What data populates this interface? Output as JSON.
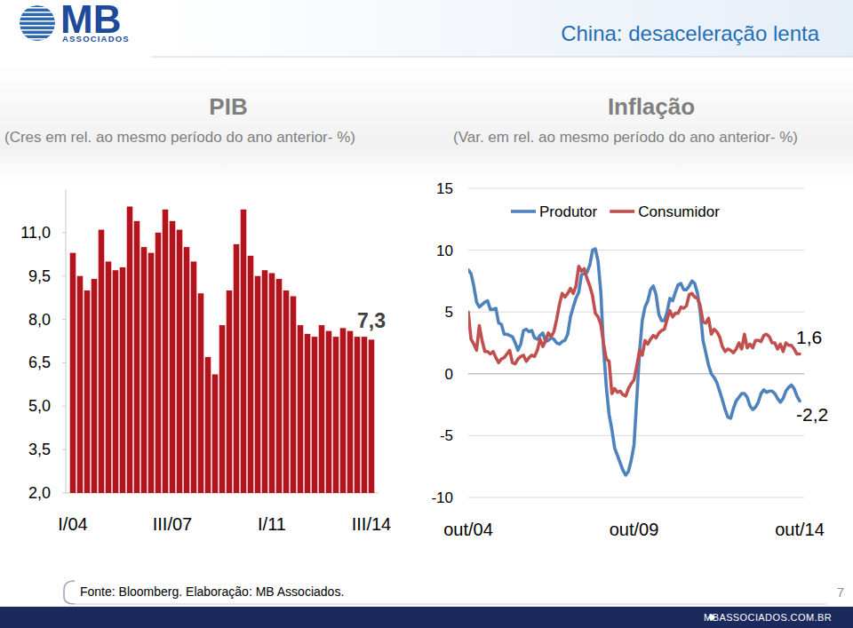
{
  "header": {
    "logo": "MB",
    "logo_sub": "ASSOCIADOS",
    "title": "China: desaceleração lenta"
  },
  "chart_data": [
    {
      "type": "bar",
      "title": "PIB",
      "subtitle": "(Cres em rel. ao mesmo período do ano anterior- %)",
      "categories": [
        "I/04",
        null,
        null,
        null,
        null,
        null,
        null,
        null,
        null,
        null,
        null,
        null,
        null,
        null,
        "III/07",
        null,
        null,
        null,
        null,
        null,
        null,
        null,
        null,
        null,
        null,
        null,
        null,
        null,
        "I/11",
        null,
        null,
        null,
        null,
        null,
        null,
        null,
        null,
        null,
        null,
        null,
        null,
        null,
        "III/14"
      ],
      "values": [
        10.3,
        9.5,
        9.0,
        9.4,
        11.1,
        10.0,
        9.7,
        9.8,
        11.9,
        11.4,
        10.5,
        10.3,
        11.0,
        11.8,
        11.4,
        11.1,
        10.5,
        10.0,
        8.9,
        6.7,
        6.1,
        7.8,
        9.0,
        10.6,
        11.8,
        10.2,
        9.5,
        9.7,
        9.6,
        9.4,
        9.0,
        8.8,
        7.8,
        7.5,
        7.4,
        7.8,
        7.6,
        7.4,
        7.7,
        7.6,
        7.4,
        7.4,
        7.3
      ],
      "value_labels": [
        null,
        null,
        null,
        null,
        null,
        null,
        null,
        null,
        null,
        null,
        null,
        null,
        null,
        null,
        null,
        null,
        null,
        null,
        null,
        null,
        null,
        null,
        null,
        null,
        null,
        null,
        null,
        null,
        null,
        null,
        null,
        null,
        null,
        null,
        null,
        null,
        null,
        null,
        null,
        null,
        null,
        null,
        "7,3"
      ],
      "data_labels": true,
      "color": "#b5121b",
      "ylim": [
        2,
        12.5
      ],
      "yticks": [
        {
          "value": 2,
          "label": "2,0"
        },
        {
          "value": 3.5,
          "label": "3,5"
        },
        {
          "value": 5,
          "label": "5,0"
        },
        {
          "value": 6.5,
          "label": "6,5"
        },
        {
          "value": 8,
          "label": "8,0"
        },
        {
          "value": 9.5,
          "label": "9,5"
        },
        {
          "value": 11,
          "label": "11,0"
        }
      ]
    },
    {
      "type": "line",
      "title": "Inflação",
      "subtitle": "(Var. em rel. ao mesmo período do ano anterior- %)",
      "categories": [
        "out/04",
        null,
        null,
        null,
        null,
        null,
        null,
        null,
        null,
        null,
        null,
        null,
        null,
        null,
        null,
        null,
        null,
        null,
        null,
        null,
        null,
        null,
        null,
        null,
        null,
        null,
        null,
        null,
        null,
        null,
        null,
        null,
        null,
        null,
        null,
        null,
        null,
        null,
        null,
        null,
        null,
        null,
        null,
        null,
        null,
        null,
        null,
        null,
        null,
        null,
        null,
        null,
        null,
        null,
        null,
        null,
        null,
        null,
        null,
        null,
        "out/09",
        null,
        null,
        null,
        null,
        null,
        null,
        null,
        null,
        null,
        null,
        null,
        null,
        null,
        null,
        null,
        null,
        null,
        null,
        null,
        null,
        null,
        null,
        null,
        null,
        null,
        null,
        null,
        null,
        null,
        null,
        null,
        null,
        null,
        null,
        null,
        null,
        null,
        null,
        null,
        null,
        null,
        null,
        null,
        null,
        null,
        null,
        null,
        null,
        null,
        null,
        null,
        null,
        null,
        null,
        null,
        null,
        null,
        null,
        null,
        "out/14"
      ],
      "series": [
        {
          "name": "Produtor",
          "color": "#4f81bd",
          "values": [
            8.4,
            8.1,
            7.1,
            5.8,
            5.4,
            5.6,
            5.8,
            5.9,
            5.2,
            5.2,
            5.3,
            4.1,
            4.0,
            3.2,
            3.2,
            3.1,
            3.0,
            2.5,
            1.9,
            2.4,
            3.5,
            3.6,
            3.4,
            3.5,
            2.9,
            2.8,
            3.1,
            3.3,
            2.6,
            2.7,
            2.9,
            2.8,
            2.5,
            2.4,
            2.6,
            2.7,
            3.2,
            4.6,
            5.4,
            6.1,
            6.6,
            8.0,
            8.1,
            8.2,
            8.8,
            10.0,
            10.1,
            9.1,
            6.6,
            2.0,
            -1.1,
            -3.3,
            -4.5,
            -6.0,
            -6.6,
            -7.2,
            -7.8,
            -8.2,
            -7.9,
            -7.0,
            -5.8,
            -2.1,
            1.7,
            4.3,
            5.4,
            5.9,
            6.8,
            7.1,
            6.4,
            4.8,
            4.3,
            4.3,
            5.0,
            6.1,
            5.9,
            6.6,
            7.2,
            7.3,
            6.8,
            6.8,
            7.1,
            7.5,
            7.3,
            6.5,
            5.0,
            2.7,
            1.7,
            0.7,
            0.0,
            -0.3,
            -0.7,
            -1.4,
            -2.1,
            -2.9,
            -3.5,
            -3.6,
            -2.8,
            -2.2,
            -1.9,
            -1.6,
            -1.6,
            -1.9,
            -2.6,
            -2.9,
            -2.7,
            -2.3,
            -1.6,
            -1.3,
            -1.5,
            -1.4,
            -1.4,
            -1.6,
            -2.0,
            -2.3,
            -2.0,
            -1.4,
            -1.1,
            -0.9,
            -1.2,
            -1.8,
            -2.2
          ],
          "value_labels": [
            null,
            null,
            null,
            null,
            null,
            null,
            null,
            null,
            null,
            null,
            null,
            null,
            null,
            null,
            null,
            null,
            null,
            null,
            null,
            null,
            null,
            null,
            null,
            null,
            null,
            null,
            null,
            null,
            null,
            null,
            null,
            null,
            null,
            null,
            null,
            null,
            null,
            null,
            null,
            null,
            null,
            null,
            null,
            null,
            null,
            null,
            null,
            null,
            null,
            null,
            null,
            null,
            null,
            null,
            null,
            null,
            null,
            null,
            null,
            null,
            null,
            null,
            null,
            null,
            null,
            null,
            null,
            null,
            null,
            null,
            null,
            null,
            null,
            null,
            null,
            null,
            null,
            null,
            null,
            null,
            null,
            null,
            null,
            null,
            null,
            null,
            null,
            null,
            null,
            null,
            null,
            null,
            null,
            null,
            null,
            null,
            null,
            null,
            null,
            null,
            null,
            null,
            null,
            null,
            null,
            null,
            null,
            null,
            null,
            null,
            null,
            null,
            null,
            null,
            null,
            null,
            null,
            null,
            null,
            null,
            "-2,2"
          ]
        },
        {
          "name": "Consumidor",
          "color": "#c0504d",
          "values": [
            5.0,
            2.8,
            2.4,
            1.9,
            3.9,
            2.7,
            1.8,
            1.8,
            1.6,
            1.8,
            1.3,
            0.9,
            1.2,
            1.3,
            1.6,
            1.9,
            0.9,
            0.8,
            1.2,
            1.4,
            1.5,
            1.0,
            1.3,
            1.5,
            1.4,
            1.9,
            2.8,
            2.2,
            2.7,
            3.3,
            3.0,
            3.4,
            4.4,
            5.6,
            6.5,
            6.2,
            6.5,
            6.9,
            6.5,
            7.1,
            8.7,
            8.3,
            8.5,
            7.7,
            7.1,
            6.3,
            4.9,
            4.6,
            4.0,
            2.4,
            1.2,
            1.0,
            -1.6,
            -1.2,
            -1.5,
            -1.4,
            -1.7,
            -1.8,
            -1.2,
            -0.8,
            -0.5,
            0.6,
            1.9,
            1.5,
            2.7,
            2.4,
            2.8,
            3.1,
            2.9,
            3.3,
            3.5,
            3.6,
            4.4,
            5.1,
            4.6,
            4.9,
            4.9,
            5.4,
            5.3,
            5.5,
            6.4,
            6.5,
            6.2,
            6.1,
            5.5,
            4.2,
            4.1,
            4.5,
            3.2,
            3.6,
            3.4,
            3.0,
            2.2,
            1.8,
            2.0,
            1.9,
            1.7,
            2.0,
            2.5,
            2.0,
            3.2,
            2.1,
            2.4,
            2.1,
            2.7,
            2.7,
            2.6,
            3.1,
            3.2,
            3.0,
            2.5,
            2.5,
            2.0,
            2.4,
            1.8,
            2.5,
            2.3,
            2.3,
            2.0,
            1.6,
            1.6
          ],
          "value_labels": [
            null,
            null,
            null,
            null,
            null,
            null,
            null,
            null,
            null,
            null,
            null,
            null,
            null,
            null,
            null,
            null,
            null,
            null,
            null,
            null,
            null,
            null,
            null,
            null,
            null,
            null,
            null,
            null,
            null,
            null,
            null,
            null,
            null,
            null,
            null,
            null,
            null,
            null,
            null,
            null,
            null,
            null,
            null,
            null,
            null,
            null,
            null,
            null,
            null,
            null,
            null,
            null,
            null,
            null,
            null,
            null,
            null,
            null,
            null,
            null,
            null,
            null,
            null,
            null,
            null,
            null,
            null,
            null,
            null,
            null,
            null,
            null,
            null,
            null,
            null,
            null,
            null,
            null,
            null,
            null,
            null,
            null,
            null,
            null,
            null,
            null,
            null,
            null,
            null,
            null,
            null,
            null,
            null,
            null,
            null,
            null,
            null,
            null,
            null,
            null,
            null,
            null,
            null,
            null,
            null,
            null,
            null,
            null,
            null,
            null,
            null,
            null,
            null,
            null,
            null,
            null,
            null,
            null,
            null,
            null,
            "1,6"
          ]
        }
      ],
      "ylim": [
        -10,
        15
      ],
      "yticks": [
        -10,
        -5,
        0,
        5,
        10,
        15
      ],
      "grid": true,
      "legend": "top",
      "data_labels": true
    }
  ],
  "footer": {
    "source": "Fonte: Bloomberg. Elaboração: MB Associados.",
    "page": 7,
    "website": "MBASSOCIADOS.COM.BR"
  }
}
